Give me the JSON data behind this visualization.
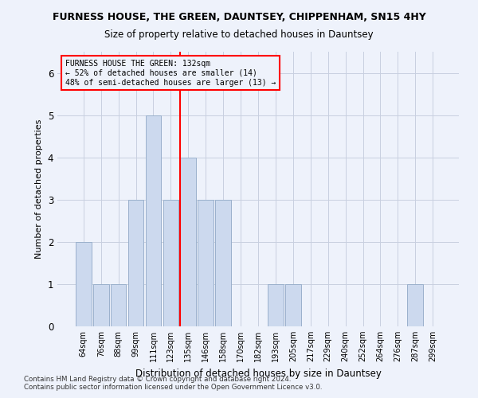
{
  "title": "FURNESS HOUSE, THE GREEN, DAUNTSEY, CHIPPENHAM, SN15 4HY",
  "subtitle": "Size of property relative to detached houses in Dauntsey",
  "xlabel": "Distribution of detached houses by size in Dauntsey",
  "ylabel": "Number of detached properties",
  "categories": [
    "64sqm",
    "76sqm",
    "88sqm",
    "99sqm",
    "111sqm",
    "123sqm",
    "135sqm",
    "146sqm",
    "158sqm",
    "170sqm",
    "182sqm",
    "193sqm",
    "205sqm",
    "217sqm",
    "229sqm",
    "240sqm",
    "252sqm",
    "264sqm",
    "276sqm",
    "287sqm",
    "299sqm"
  ],
  "values": [
    2,
    1,
    1,
    3,
    5,
    3,
    4,
    3,
    3,
    0,
    0,
    1,
    1,
    0,
    0,
    0,
    0,
    0,
    0,
    1,
    0
  ],
  "bar_color": "#ccd9ee",
  "bar_edgecolor": "#9ab0cc",
  "highlight_bar_idx": 6,
  "ylim": [
    0,
    6.5
  ],
  "yticks": [
    0,
    1,
    2,
    3,
    4,
    5,
    6
  ],
  "annotation_line1": "FURNESS HOUSE THE GREEN: 132sqm",
  "annotation_line2": "← 52% of detached houses are smaller (14)",
  "annotation_line3": "48% of semi-detached houses are larger (13) →",
  "footnote1": "Contains HM Land Registry data © Crown copyright and database right 2024.",
  "footnote2": "Contains public sector information licensed under the Open Government Licence v3.0.",
  "background_color": "#eef2fb",
  "grid_color": "#c8cfe0"
}
